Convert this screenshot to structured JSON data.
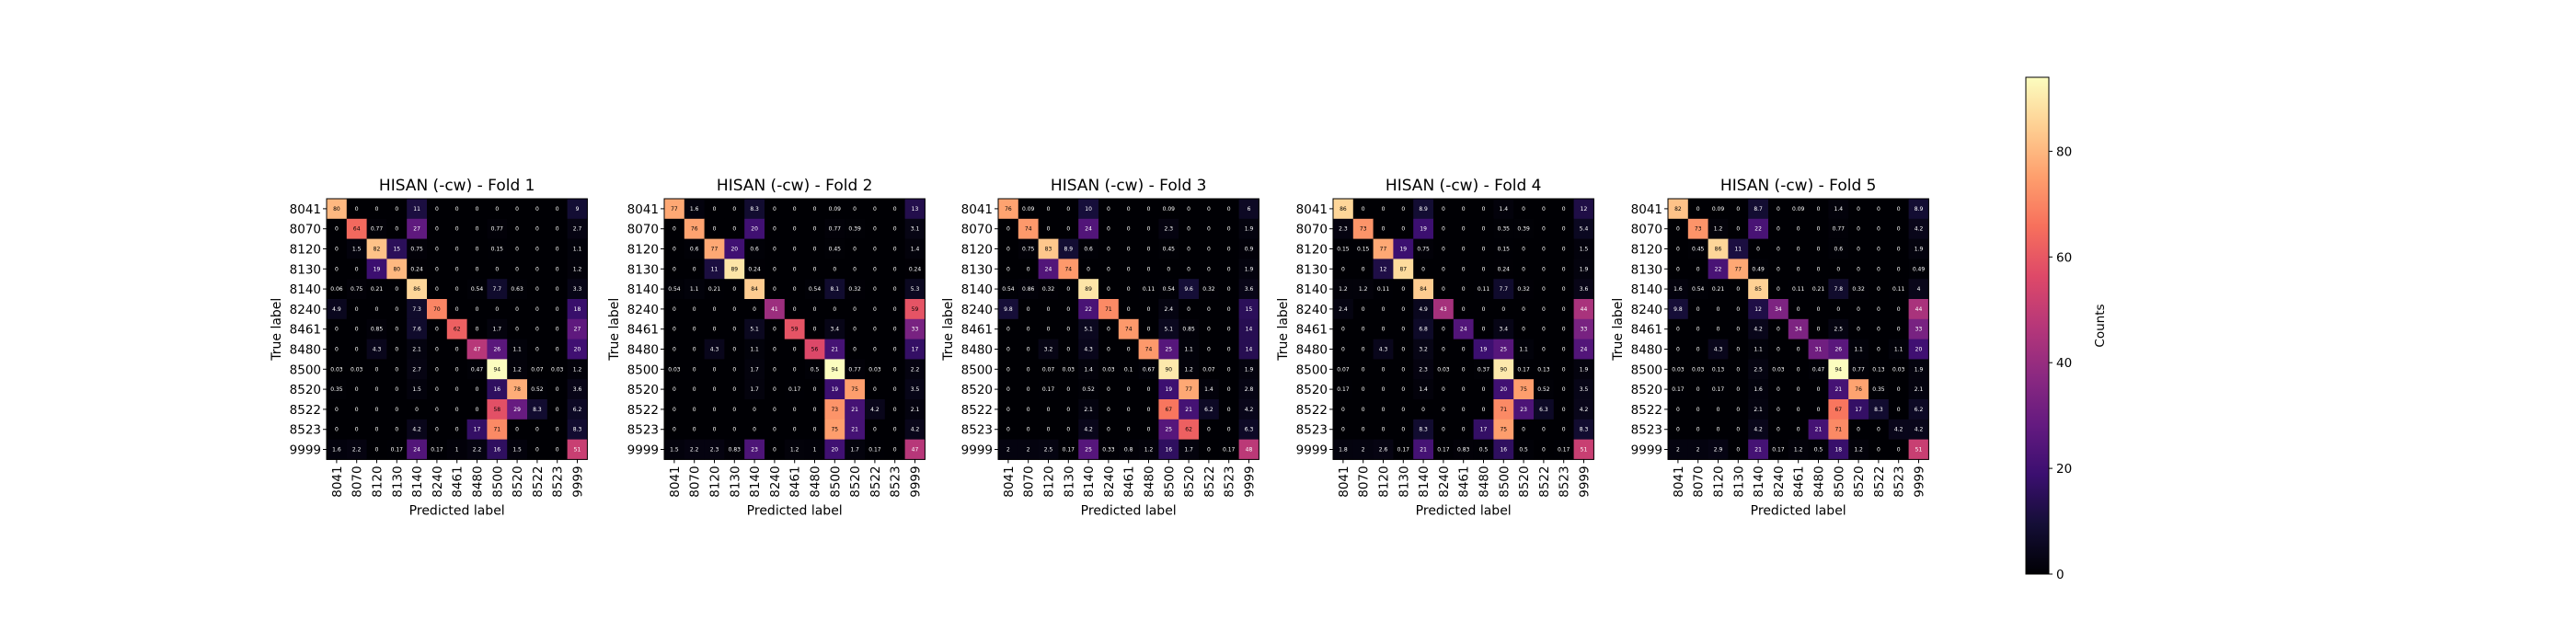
{
  "chart_data": {
    "type": "heatmap",
    "labels": [
      "8041",
      "8070",
      "8120",
      "8130",
      "8140",
      "8240",
      "8461",
      "8480",
      "8500",
      "8520",
      "8522",
      "8523",
      "9999"
    ],
    "xlabel": "Predicted label",
    "ylabel": "True label",
    "colorbar": {
      "label": "Counts",
      "ticks": [
        0,
        20,
        40,
        60,
        80
      ],
      "range": [
        0,
        94
      ],
      "colormap": "magma"
    },
    "panels": [
      {
        "title": "HISAN (-cw) - Fold 1",
        "matrix": [
          [
            80,
            0,
            0,
            0,
            11,
            0,
            0,
            0,
            0,
            0,
            0,
            0,
            9
          ],
          [
            0,
            64,
            0.77,
            0,
            27,
            0,
            0,
            0,
            0.77,
            0,
            0,
            0,
            2.7
          ],
          [
            0,
            1.5,
            82,
            15,
            0.75,
            0,
            0,
            0,
            0.15,
            0,
            0,
            0,
            1.1
          ],
          [
            0,
            0,
            19,
            80,
            0.24,
            0,
            0,
            0,
            0,
            0,
            0,
            0,
            1.2
          ],
          [
            0.06,
            0.75,
            0.21,
            0,
            86,
            0,
            0,
            0.54,
            7.7,
            0.63,
            0,
            0,
            3.3
          ],
          [
            4.9,
            0,
            0,
            0,
            7.3,
            70,
            0,
            0,
            0,
            0,
            0,
            0,
            18
          ],
          [
            0,
            0,
            0.85,
            0,
            7.6,
            0,
            62,
            0,
            1.7,
            0,
            0,
            0,
            27
          ],
          [
            0,
            0,
            4.3,
            0,
            2.1,
            0,
            0,
            47,
            26,
            1.1,
            0,
            0,
            20
          ],
          [
            0.03,
            0.03,
            0,
            0,
            2.7,
            0,
            0,
            0.47,
            94,
            1.2,
            0.07,
            0.03,
            1.2
          ],
          [
            0.35,
            0,
            0,
            0,
            1.5,
            0,
            0,
            0,
            16,
            78,
            0.52,
            0,
            3.6
          ],
          [
            0,
            0,
            0,
            0,
            0,
            0,
            0,
            0,
            58,
            29,
            8.3,
            0,
            6.2
          ],
          [
            0,
            0,
            0,
            0,
            4.2,
            0,
            0,
            17,
            71,
            0,
            0,
            0,
            8.3
          ],
          [
            1.6,
            2.2,
            0,
            0.17,
            24,
            0.17,
            1,
            2.2,
            16,
            1.5,
            0,
            0,
            51
          ]
        ]
      },
      {
        "title": "HISAN (-cw) - Fold 2",
        "matrix": [
          [
            77,
            1.6,
            0,
            0,
            8.3,
            0,
            0,
            0,
            0.09,
            0,
            0,
            0,
            13
          ],
          [
            0,
            76,
            0,
            0,
            20,
            0,
            0,
            0,
            0.77,
            0.39,
            0,
            0,
            3.1
          ],
          [
            0,
            0.6,
            77,
            20,
            0.6,
            0,
            0,
            0,
            0.45,
            0,
            0,
            0,
            1.4
          ],
          [
            0,
            0,
            11,
            89,
            0.24,
            0,
            0,
            0,
            0,
            0,
            0,
            0,
            0.24
          ],
          [
            0.54,
            1.1,
            0.21,
            0,
            84,
            0,
            0,
            0.54,
            8.1,
            0.32,
            0,
            0,
            5.3
          ],
          [
            0,
            0,
            0,
            0,
            0,
            41,
            0,
            0,
            0,
            0,
            0,
            0,
            59
          ],
          [
            0,
            0,
            0,
            0,
            5.1,
            0,
            59,
            0,
            3.4,
            0,
            0,
            0,
            33
          ],
          [
            0,
            0,
            4.3,
            0,
            1.1,
            0,
            0,
            56,
            21,
            0,
            0,
            0,
            17
          ],
          [
            0.03,
            0,
            0,
            0,
            1.7,
            0,
            0,
            0.5,
            94,
            0.77,
            0.03,
            0,
            2.2
          ],
          [
            0,
            0,
            0,
            0,
            1.7,
            0,
            0.17,
            0,
            19,
            75,
            0,
            0,
            3.5
          ],
          [
            0,
            0,
            0,
            0,
            0,
            0,
            0,
            0,
            73,
            21,
            4.2,
            0,
            2.1
          ],
          [
            0,
            0,
            0,
            0,
            0,
            0,
            0,
            0,
            75,
            21,
            0,
            0,
            4.2
          ],
          [
            1.5,
            2.2,
            2.3,
            0.83,
            23,
            0,
            1.2,
            1,
            20,
            1.7,
            0.17,
            0,
            47
          ]
        ]
      },
      {
        "title": "HISAN (-cw) - Fold 3",
        "matrix": [
          [
            76,
            0.09,
            0,
            0,
            10,
            0,
            0,
            0,
            0.09,
            0,
            0,
            0,
            6
          ],
          [
            0,
            74,
            0,
            0,
            24,
            0,
            0,
            0,
            2.3,
            0,
            0,
            0,
            1.9
          ],
          [
            0,
            0.75,
            83,
            8.9,
            0.6,
            0,
            0,
            0,
            0.45,
            0,
            0,
            0,
            0.9
          ],
          [
            0,
            0,
            24,
            74,
            0,
            0,
            0,
            0,
            0,
            0,
            0,
            0,
            1.9
          ],
          [
            0.54,
            0.86,
            0.32,
            0,
            89,
            0,
            0,
            0.11,
            0.54,
            9.6,
            0.32,
            0,
            3.6
          ],
          [
            9.8,
            0,
            0,
            0,
            22,
            71,
            0,
            0,
            2.4,
            0,
            0,
            0,
            15
          ],
          [
            0,
            0,
            0,
            0,
            5.1,
            0,
            74,
            0,
            5.1,
            0.85,
            0,
            0,
            14
          ],
          [
            0,
            0,
            3.2,
            0,
            4.3,
            0,
            0,
            74,
            25,
            1.1,
            0,
            0,
            14
          ],
          [
            0,
            0,
            0.07,
            0.03,
            1.4,
            0.03,
            0.1,
            0.67,
            90,
            1.2,
            0.07,
            0,
            1.9
          ],
          [
            0,
            0,
            0.17,
            0,
            0.52,
            0,
            0,
            0,
            19,
            77,
            1.4,
            0,
            2.8
          ],
          [
            0,
            0,
            0,
            0,
            2.1,
            0,
            0,
            0,
            67,
            21,
            6.2,
            0,
            4.2
          ],
          [
            0,
            0,
            0,
            0,
            4.2,
            0,
            0,
            0,
            25,
            62,
            0,
            0,
            6.3
          ],
          [
            2,
            2,
            2.5,
            0.17,
            25,
            0.33,
            0.8,
            1.2,
            16,
            1.7,
            0,
            0.17,
            48
          ]
        ]
      },
      {
        "title": "HISAN (-cw) - Fold 4",
        "matrix": [
          [
            86,
            0,
            0,
            0,
            8.9,
            0,
            0,
            0,
            1.4,
            0,
            0,
            0,
            12
          ],
          [
            2.3,
            73,
            0,
            0,
            19,
            0,
            0,
            0,
            0.35,
            0.39,
            0,
            0,
            5.4
          ],
          [
            0.15,
            0.15,
            77,
            19,
            0.75,
            0,
            0,
            0,
            0.15,
            0,
            0,
            0,
            1.5
          ],
          [
            0,
            0,
            12,
            87,
            0,
            0,
            0,
            0,
            0.24,
            0,
            0,
            0,
            1.9
          ],
          [
            1.2,
            1.2,
            0.11,
            0,
            84,
            0,
            0,
            0.11,
            7.7,
            0.32,
            0,
            0,
            3.6
          ],
          [
            2.4,
            0,
            0,
            0,
            4.9,
            43,
            0,
            0,
            0,
            0,
            0,
            0,
            44
          ],
          [
            0,
            0,
            0,
            0,
            6.8,
            0,
            24,
            0,
            3.4,
            0,
            0,
            0,
            33
          ],
          [
            0,
            0,
            4.3,
            0,
            3.2,
            0,
            0,
            19,
            25,
            1.1,
            0,
            0,
            24
          ],
          [
            0.07,
            0,
            0,
            0,
            2.3,
            0.03,
            0,
            0.37,
            90,
            0.17,
            0.13,
            0,
            1.9
          ],
          [
            0.17,
            0,
            0,
            0,
            1.4,
            0,
            0,
            0,
            20,
            75,
            0.52,
            0,
            3.5
          ],
          [
            0,
            0,
            0,
            0,
            0,
            0,
            0,
            0,
            71,
            23,
            6.3,
            0,
            4.2
          ],
          [
            0,
            0,
            0,
            0,
            8.3,
            0,
            0,
            17,
            75,
            0,
            0,
            0,
            8.3
          ],
          [
            1.8,
            2,
            2.6,
            0.17,
            21,
            0.17,
            0.83,
            0.5,
            16,
            0.5,
            0,
            0.17,
            51
          ]
        ]
      },
      {
        "title": "HISAN (-cw) - Fold 5",
        "matrix": [
          [
            82,
            0,
            0.09,
            0,
            8.7,
            0,
            0.09,
            0,
            1.4,
            0,
            0,
            0,
            8.9
          ],
          [
            0,
            73,
            1.2,
            0,
            22,
            0,
            0,
            0,
            0.77,
            0,
            0,
            0,
            4.2
          ],
          [
            0,
            0.45,
            86,
            11,
            0,
            0,
            0,
            0,
            0.6,
            0,
            0,
            0,
            1.9
          ],
          [
            0,
            0,
            22,
            77,
            0.49,
            0,
            0,
            0,
            0,
            0,
            0,
            0,
            0.49
          ],
          [
            1.6,
            0.54,
            0.21,
            0,
            85,
            0,
            0.11,
            0.21,
            7.8,
            0.32,
            0,
            0.11,
            4
          ],
          [
            9.8,
            0,
            0,
            0,
            12,
            34,
            0,
            0,
            0,
            0,
            0,
            0,
            44
          ],
          [
            0,
            0,
            0,
            0,
            4.2,
            0,
            34,
            0,
            2.5,
            0,
            0,
            0,
            33
          ],
          [
            0,
            0,
            4.3,
            0,
            1.1,
            0,
            0,
            31,
            26,
            1.1,
            0,
            1.1,
            20
          ],
          [
            0.03,
            0.03,
            0.13,
            0,
            2.5,
            0.03,
            0,
            0.47,
            94,
            0.77,
            0.13,
            0.03,
            1.9
          ],
          [
            0.17,
            0,
            0.17,
            0,
            1.6,
            0,
            0,
            0,
            21,
            76,
            0.35,
            0,
            2.1
          ],
          [
            0,
            0,
            0,
            0,
            2.1,
            0,
            0,
            0,
            67,
            17,
            8.3,
            0,
            6.2
          ],
          [
            0,
            0,
            0,
            0,
            4.2,
            0,
            0,
            21,
            71,
            0,
            0,
            4.2,
            4.2
          ],
          [
            2,
            2,
            2.9,
            0,
            21,
            0.17,
            1.2,
            0.5,
            18,
            1.2,
            0,
            0,
            51
          ]
        ]
      }
    ]
  }
}
